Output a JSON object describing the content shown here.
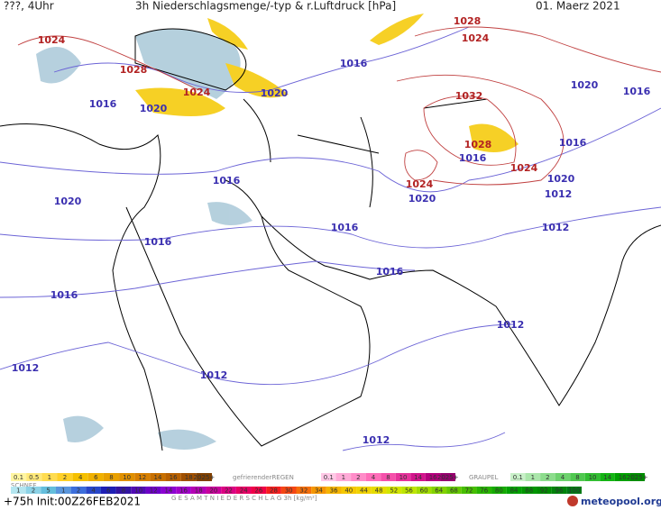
{
  "header": {
    "left": "???, 4Uhr",
    "title": "3h Niederschlagsmenge/-typ & r.Luftdruck [hPa]",
    "date": "01. Maerz 2021"
  },
  "isobars": [
    {
      "label": "1024",
      "color": "#b22222"
    },
    {
      "label": "1028",
      "color": "#b22222"
    },
    {
      "label": "1024",
      "color": "#b22222"
    },
    {
      "label": "1020",
      "color": "#3a2fb0"
    },
    {
      "label": "1016",
      "color": "#3a2fb0"
    },
    {
      "label": "1020",
      "color": "#3a2fb0"
    },
    {
      "label": "1016",
      "color": "#3a2fb0"
    },
    {
      "label": "1028",
      "color": "#b22222"
    },
    {
      "label": "1024",
      "color": "#b22222"
    },
    {
      "label": "1020",
      "color": "#3a2fb0"
    },
    {
      "label": "1016",
      "color": "#3a2fb0"
    },
    {
      "label": "1032",
      "color": "#b22222"
    },
    {
      "label": "1028",
      "color": "#b22222"
    },
    {
      "label": "1016",
      "color": "#3a2fb0"
    },
    {
      "label": "1024",
      "color": "#b22222"
    },
    {
      "label": "1016",
      "color": "#3a2fb0"
    },
    {
      "label": "1020",
      "color": "#3a2fb0"
    },
    {
      "label": "1012",
      "color": "#3a2fb0"
    },
    {
      "label": "1024",
      "color": "#b22222"
    },
    {
      "label": "1020",
      "color": "#3a2fb0"
    },
    {
      "label": "1016",
      "color": "#3a2fb0"
    },
    {
      "label": "1020",
      "color": "#3a2fb0"
    },
    {
      "label": "1016",
      "color": "#3a2fb0"
    },
    {
      "label": "1016",
      "color": "#3a2fb0"
    },
    {
      "label": "1012",
      "color": "#3a2fb0"
    },
    {
      "label": "1016",
      "color": "#3a2fb0"
    },
    {
      "label": "1016",
      "color": "#3a2fb0"
    },
    {
      "label": "1012",
      "color": "#3a2fb0"
    },
    {
      "label": "1012",
      "color": "#3a2fb0"
    },
    {
      "label": "1012",
      "color": "#3a2fb0"
    },
    {
      "label": "1012",
      "color": "#3a2fb0"
    }
  ],
  "legends": {
    "rain": {
      "labels": [
        "0.1",
        "0.5",
        "1",
        "2",
        "4",
        "6",
        "8",
        "10",
        "12",
        "14",
        "16",
        "18",
        "2025+"
      ],
      "colors": [
        "#fff5a0",
        "#ffe97a",
        "#ffdc50",
        "#ffd028",
        "#f5c000",
        "#f0b000",
        "#e8a000",
        "#e09000",
        "#d88000",
        "#c87000",
        "#b86000",
        "#a05000",
        "#804000"
      ]
    },
    "freezing": {
      "caption": "gefrierenderREGEN",
      "labels": [
        "0.1",
        "1",
        "2",
        "4",
        "8",
        "10",
        "14",
        "16",
        "2025+"
      ],
      "colors": [
        "#ffc8e6",
        "#ffaad7",
        "#ff8cc8",
        "#ff6eb9",
        "#f550aa",
        "#e6329b",
        "#d2148c",
        "#b4007d",
        "#96006e"
      ]
    },
    "graupel": {
      "caption": "GRAUPEL",
      "labels": [
        "0.1",
        "1",
        "2",
        "4",
        "8",
        "10",
        "14",
        "16",
        "2025+"
      ],
      "colors": [
        "#c8f0c8",
        "#aae6aa",
        "#8cdc8c",
        "#6ed26e",
        "#50c850",
        "#32be32",
        "#14b414",
        "#00a000",
        "#008c00"
      ]
    },
    "snow": {
      "caption": "SCHNEE"
    },
    "total": {
      "caption": "G E S A M T N I E D E R S C H L A G   3h  [kg/m²]",
      "labels": [
        "1",
        "2",
        "5",
        "1",
        "2",
        "4",
        "6",
        "8",
        "10",
        "12",
        "14",
        "16",
        "18",
        "20",
        "22",
        "24",
        "26",
        "28",
        "30",
        "32",
        "34",
        "36",
        "40",
        "44",
        "48",
        "52",
        "56",
        "60",
        "64",
        "68",
        "72",
        "76",
        "80",
        "84",
        "88",
        "92",
        "96",
        "100"
      ],
      "colors": [
        "#b4e6f0",
        "#8cd2e6",
        "#64bedc",
        "#5a96dc",
        "#3c6edc",
        "#2846c8",
        "#1e1eb4",
        "#3214a0",
        "#500ab4",
        "#6e00c8",
        "#8c00d2",
        "#a000c8",
        "#b400b4",
        "#c8009b",
        "#dc0082",
        "#e60064",
        "#f00046",
        "#f51e1e",
        "#f54614",
        "#f56e0a",
        "#f59600",
        "#f5b400",
        "#f5c800",
        "#f0d200",
        "#e6dc00",
        "#d2e600",
        "#bee600",
        "#a0dc00",
        "#82d200",
        "#64c800",
        "#46be00",
        "#28b400",
        "#14aa00",
        "#00a000",
        "#009600",
        "#008c00",
        "#00820a",
        "#007814"
      ]
    }
  },
  "footer": {
    "run": "+75h Init:00Z26FEB2021",
    "brand": "meteopool.org"
  }
}
